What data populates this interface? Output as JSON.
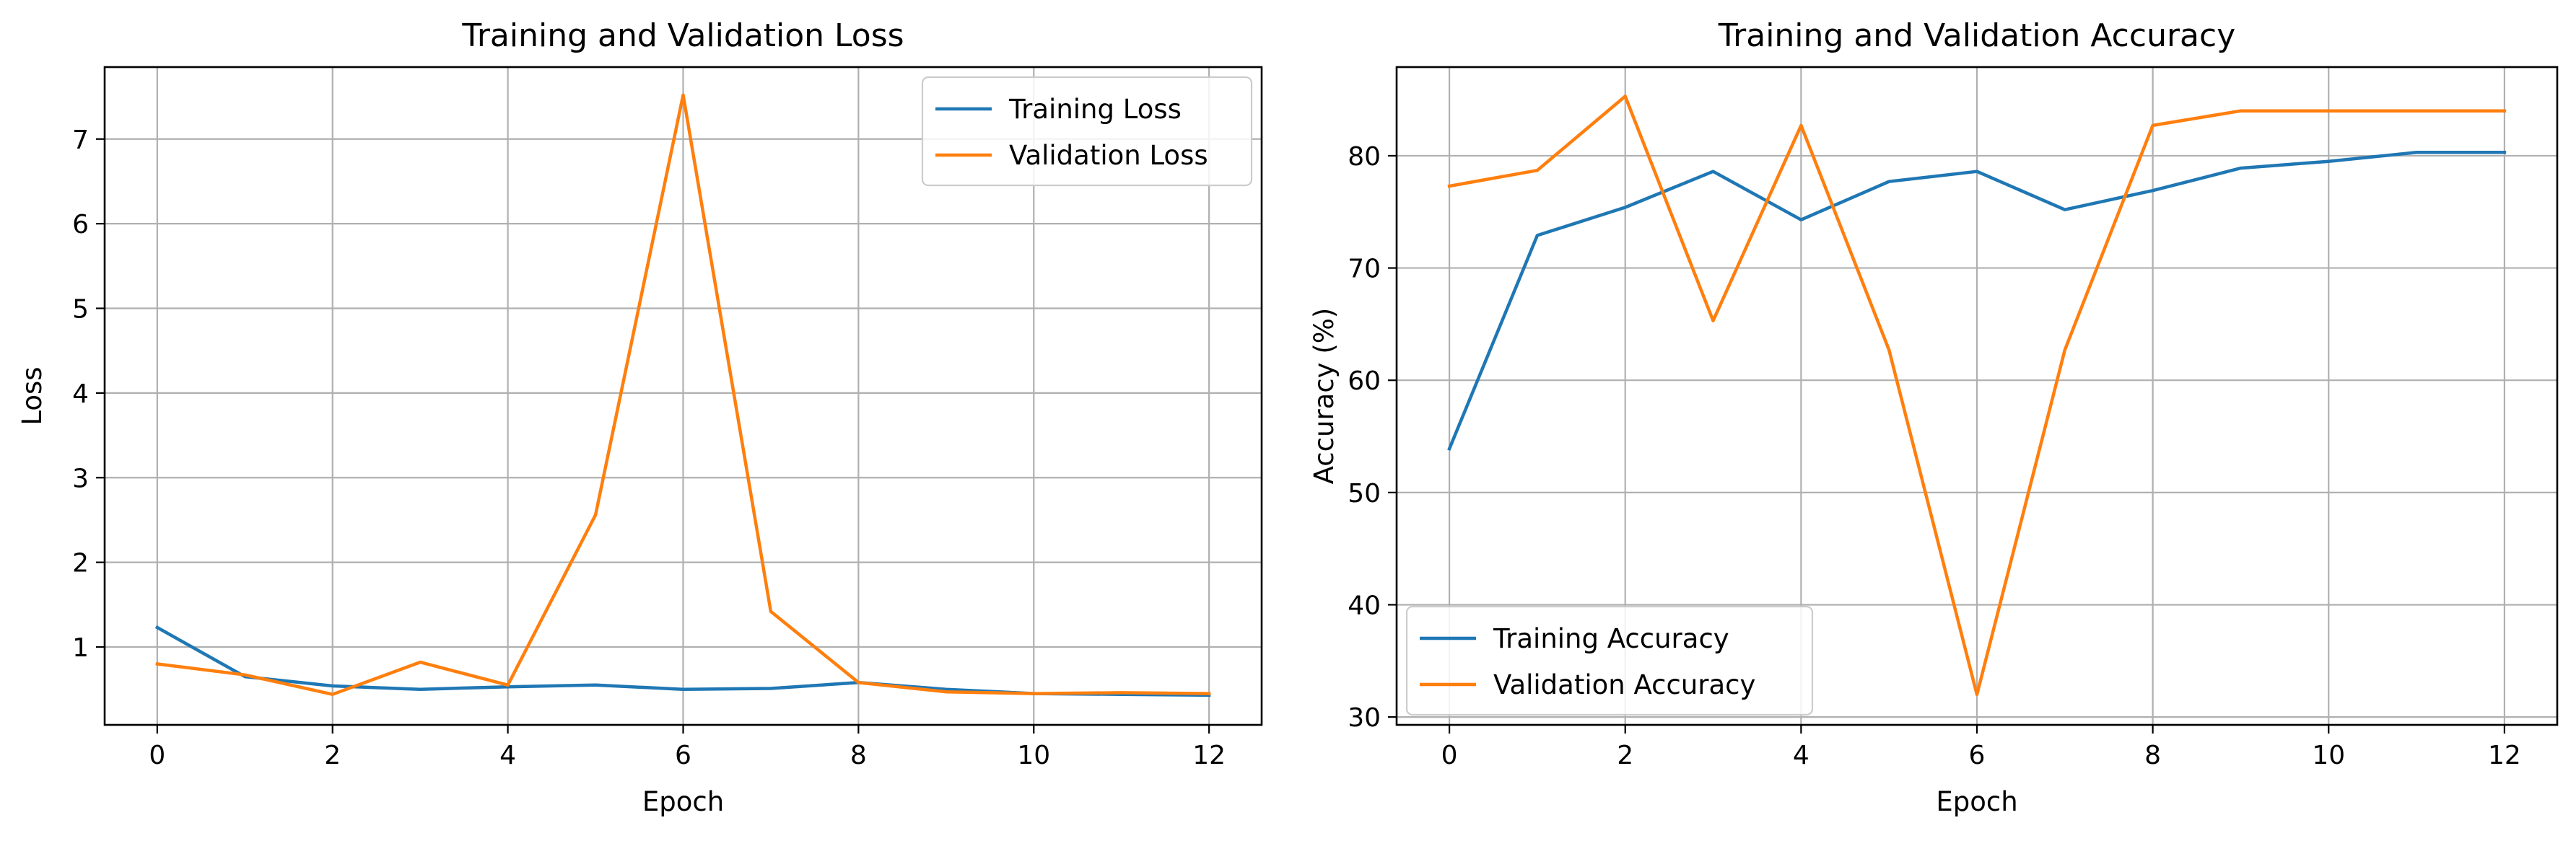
{
  "chart_data": [
    {
      "type": "line",
      "title": "Training and Validation Loss",
      "xlabel": "Epoch",
      "ylabel": "Loss",
      "x": [
        0,
        1,
        2,
        3,
        4,
        5,
        6,
        7,
        8,
        9,
        10,
        11,
        12
      ],
      "xlim": [
        -0.6,
        12.6
      ],
      "ylim": [
        0.08,
        7.85
      ],
      "xticks": [
        0,
        2,
        4,
        6,
        8,
        10,
        12
      ],
      "yticks": [
        1,
        2,
        3,
        4,
        5,
        6,
        7
      ],
      "grid": true,
      "legend_position": "top-right",
      "series": [
        {
          "name": "Training Loss",
          "color": "#1f77b4",
          "values": [
            1.23,
            0.65,
            0.54,
            0.5,
            0.53,
            0.55,
            0.5,
            0.51,
            0.58,
            0.5,
            0.45,
            0.44,
            0.43
          ]
        },
        {
          "name": "Validation Loss",
          "color": "#ff7f0e",
          "values": [
            0.8,
            0.67,
            0.44,
            0.82,
            0.55,
            2.56,
            7.52,
            1.42,
            0.58,
            0.47,
            0.45,
            0.46,
            0.45
          ]
        }
      ]
    },
    {
      "type": "line",
      "title": "Training and Validation Accuracy",
      "xlabel": "Epoch",
      "ylabel": "Accuracy (%)",
      "x": [
        0,
        1,
        2,
        3,
        4,
        5,
        6,
        7,
        8,
        9,
        10,
        11,
        12
      ],
      "xlim": [
        -0.6,
        12.6
      ],
      "ylim": [
        29.3,
        87.9
      ],
      "xticks": [
        0,
        2,
        4,
        6,
        8,
        10,
        12
      ],
      "yticks": [
        30,
        40,
        50,
        60,
        70,
        80
      ],
      "grid": true,
      "legend_position": "bottom-left",
      "series": [
        {
          "name": "Training Accuracy",
          "color": "#1f77b4",
          "values": [
            53.9,
            72.9,
            75.4,
            78.6,
            74.3,
            77.7,
            78.6,
            75.2,
            76.9,
            78.9,
            79.5,
            80.3,
            80.3
          ]
        },
        {
          "name": "Validation Accuracy",
          "color": "#ff7f0e",
          "values": [
            77.3,
            78.7,
            85.3,
            65.3,
            82.7,
            62.7,
            32.0,
            62.7,
            82.7,
            84.0,
            84.0,
            84.0,
            84.0
          ]
        }
      ]
    }
  ]
}
